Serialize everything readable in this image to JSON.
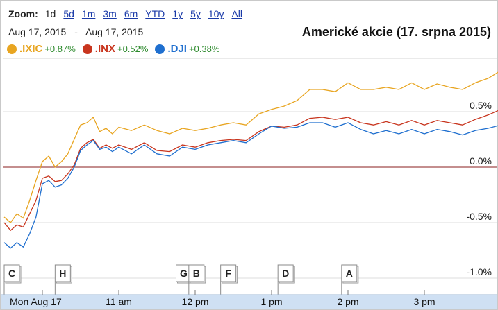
{
  "zoom": {
    "label": "Zoom:",
    "options": [
      {
        "label": "1d",
        "active": true
      },
      {
        "label": "5d",
        "active": false
      },
      {
        "label": "1m",
        "active": false
      },
      {
        "label": "3m",
        "active": false
      },
      {
        "label": "6m",
        "active": false
      },
      {
        "label": "YTD",
        "active": false
      },
      {
        "label": "1y",
        "active": false
      },
      {
        "label": "5y",
        "active": false
      },
      {
        "label": "10y",
        "active": false
      },
      {
        "label": "All",
        "active": false
      }
    ]
  },
  "date_range": {
    "from": "Aug 17, 2015",
    "separator": "-",
    "to": "Aug 17, 2015"
  },
  "colors": {
    "ixic": "#e8a521",
    "inx": "#c8351e",
    "dji": "#1f6fcf",
    "positive": "#2e8b2e"
  },
  "chart_data": {
    "type": "line",
    "title": "Americké akcie (17. srpna 2015)",
    "ylim": [
      -1.15,
      1.0
    ],
    "y_ticks": [
      {
        "value": 0.5,
        "label": "0.5%"
      },
      {
        "value": 0.0,
        "label": "0.0%"
      },
      {
        "value": -0.5,
        "label": "-0.5%"
      },
      {
        "value": -1.0,
        "label": "-1.0%"
      }
    ],
    "x_range": [
      "09:30",
      "16:00"
    ],
    "x_ticks": [
      {
        "time": "09:30",
        "label": "Mon Aug 17"
      },
      {
        "time": "11:00",
        "label": "11 am"
      },
      {
        "time": "12:00",
        "label": "12 pm"
      },
      {
        "time": "13:00",
        "label": "1 pm"
      },
      {
        "time": "14:00",
        "label": "2 pm"
      },
      {
        "time": "15:00",
        "label": "3 pm"
      }
    ],
    "grid": true,
    "series": [
      {
        "name": ".IXIC",
        "change": "+0.87%",
        "color": "#e8a521",
        "points": [
          [
            "09:30",
            -0.45
          ],
          [
            "09:35",
            -0.5
          ],
          [
            "09:40",
            -0.42
          ],
          [
            "09:45",
            -0.46
          ],
          [
            "09:50",
            -0.3
          ],
          [
            "09:55",
            -0.12
          ],
          [
            "10:00",
            0.05
          ],
          [
            "10:05",
            0.1
          ],
          [
            "10:10",
            0.0
          ],
          [
            "10:15",
            0.05
          ],
          [
            "10:20",
            0.12
          ],
          [
            "10:25",
            0.25
          ],
          [
            "10:30",
            0.38
          ],
          [
            "10:35",
            0.4
          ],
          [
            "10:40",
            0.45
          ],
          [
            "10:45",
            0.32
          ],
          [
            "10:50",
            0.35
          ],
          [
            "10:55",
            0.3
          ],
          [
            "11:00",
            0.36
          ],
          [
            "11:10",
            0.33
          ],
          [
            "11:20",
            0.38
          ],
          [
            "11:30",
            0.33
          ],
          [
            "11:40",
            0.3
          ],
          [
            "11:50",
            0.35
          ],
          [
            "12:00",
            0.33
          ],
          [
            "12:10",
            0.35
          ],
          [
            "12:20",
            0.38
          ],
          [
            "12:30",
            0.4
          ],
          [
            "12:40",
            0.38
          ],
          [
            "12:50",
            0.48
          ],
          [
            "13:00",
            0.52
          ],
          [
            "13:10",
            0.55
          ],
          [
            "13:20",
            0.6
          ],
          [
            "13:30",
            0.7
          ],
          [
            "13:40",
            0.7
          ],
          [
            "13:50",
            0.68
          ],
          [
            "14:00",
            0.76
          ],
          [
            "14:10",
            0.7
          ],
          [
            "14:20",
            0.7
          ],
          [
            "14:30",
            0.72
          ],
          [
            "14:40",
            0.7
          ],
          [
            "14:50",
            0.76
          ],
          [
            "15:00",
            0.7
          ],
          [
            "15:10",
            0.75
          ],
          [
            "15:20",
            0.72
          ],
          [
            "15:30",
            0.7
          ],
          [
            "15:40",
            0.76
          ],
          [
            "15:50",
            0.8
          ],
          [
            "16:00",
            0.87
          ]
        ]
      },
      {
        "name": ".INX",
        "change": "+0.52%",
        "color": "#c8351e",
        "points": [
          [
            "09:30",
            -0.5
          ],
          [
            "09:35",
            -0.57
          ],
          [
            "09:40",
            -0.52
          ],
          [
            "09:45",
            -0.54
          ],
          [
            "09:50",
            -0.42
          ],
          [
            "09:55",
            -0.3
          ],
          [
            "10:00",
            -0.1
          ],
          [
            "10:05",
            -0.08
          ],
          [
            "10:10",
            -0.13
          ],
          [
            "10:15",
            -0.12
          ],
          [
            "10:20",
            -0.06
          ],
          [
            "10:25",
            0.02
          ],
          [
            "10:30",
            0.17
          ],
          [
            "10:35",
            0.22
          ],
          [
            "10:40",
            0.25
          ],
          [
            "10:45",
            0.17
          ],
          [
            "10:50",
            0.2
          ],
          [
            "10:55",
            0.17
          ],
          [
            "11:00",
            0.2
          ],
          [
            "11:10",
            0.16
          ],
          [
            "11:20",
            0.22
          ],
          [
            "11:30",
            0.15
          ],
          [
            "11:40",
            0.14
          ],
          [
            "11:50",
            0.2
          ],
          [
            "12:00",
            0.18
          ],
          [
            "12:10",
            0.22
          ],
          [
            "12:20",
            0.24
          ],
          [
            "12:30",
            0.25
          ],
          [
            "12:40",
            0.24
          ],
          [
            "12:50",
            0.32
          ],
          [
            "13:00",
            0.37
          ],
          [
            "13:10",
            0.36
          ],
          [
            "13:20",
            0.38
          ],
          [
            "13:30",
            0.44
          ],
          [
            "13:40",
            0.45
          ],
          [
            "13:50",
            0.43
          ],
          [
            "14:00",
            0.45
          ],
          [
            "14:10",
            0.4
          ],
          [
            "14:20",
            0.38
          ],
          [
            "14:30",
            0.41
          ],
          [
            "14:40",
            0.38
          ],
          [
            "14:50",
            0.42
          ],
          [
            "15:00",
            0.38
          ],
          [
            "15:10",
            0.42
          ],
          [
            "15:20",
            0.4
          ],
          [
            "15:30",
            0.38
          ],
          [
            "15:40",
            0.43
          ],
          [
            "15:50",
            0.47
          ],
          [
            "16:00",
            0.52
          ]
        ]
      },
      {
        "name": ".DJI",
        "change": "+0.38%",
        "color": "#1f6fcf",
        "points": [
          [
            "09:30",
            -0.68
          ],
          [
            "09:35",
            -0.73
          ],
          [
            "09:40",
            -0.68
          ],
          [
            "09:45",
            -0.72
          ],
          [
            "09:50",
            -0.6
          ],
          [
            "09:55",
            -0.45
          ],
          [
            "10:00",
            -0.15
          ],
          [
            "10:05",
            -0.12
          ],
          [
            "10:10",
            -0.18
          ],
          [
            "10:15",
            -0.16
          ],
          [
            "10:20",
            -0.1
          ],
          [
            "10:25",
            0.0
          ],
          [
            "10:30",
            0.15
          ],
          [
            "10:35",
            0.2
          ],
          [
            "10:40",
            0.24
          ],
          [
            "10:45",
            0.16
          ],
          [
            "10:50",
            0.18
          ],
          [
            "10:55",
            0.14
          ],
          [
            "11:00",
            0.18
          ],
          [
            "11:10",
            0.12
          ],
          [
            "11:20",
            0.2
          ],
          [
            "11:30",
            0.12
          ],
          [
            "11:40",
            0.1
          ],
          [
            "11:50",
            0.18
          ],
          [
            "12:00",
            0.16
          ],
          [
            "12:10",
            0.2
          ],
          [
            "12:20",
            0.22
          ],
          [
            "12:30",
            0.24
          ],
          [
            "12:40",
            0.22
          ],
          [
            "12:50",
            0.3
          ],
          [
            "13:00",
            0.37
          ],
          [
            "13:10",
            0.35
          ],
          [
            "13:20",
            0.36
          ],
          [
            "13:30",
            0.4
          ],
          [
            "13:40",
            0.4
          ],
          [
            "13:50",
            0.36
          ],
          [
            "14:00",
            0.4
          ],
          [
            "14:10",
            0.34
          ],
          [
            "14:20",
            0.3
          ],
          [
            "14:30",
            0.33
          ],
          [
            "14:40",
            0.3
          ],
          [
            "14:50",
            0.34
          ],
          [
            "15:00",
            0.3
          ],
          [
            "15:10",
            0.34
          ],
          [
            "15:20",
            0.32
          ],
          [
            "15:30",
            0.29
          ],
          [
            "15:40",
            0.33
          ],
          [
            "15:50",
            0.35
          ],
          [
            "16:00",
            0.38
          ]
        ]
      }
    ],
    "news_flags": [
      {
        "label": "C",
        "time": "09:30"
      },
      {
        "label": "H",
        "time": "10:10"
      },
      {
        "label": "G",
        "time": "11:45"
      },
      {
        "label": "B",
        "time": "11:55"
      },
      {
        "label": "F",
        "time": "12:20"
      },
      {
        "label": "D",
        "time": "13:05"
      },
      {
        "label": "A",
        "time": "13:55"
      }
    ]
  }
}
